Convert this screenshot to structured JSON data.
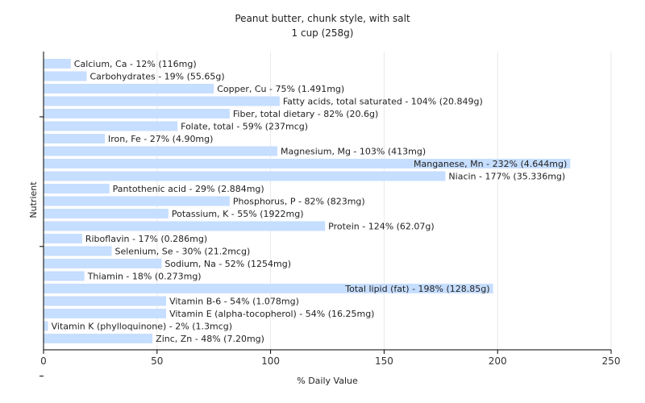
{
  "chart_data": {
    "type": "bar",
    "orientation": "horizontal",
    "title": "Peanut butter, chunk style, with salt",
    "subtitle": "1 cup (258g)",
    "xlabel": "% Daily Value",
    "ylabel": "Nutrient",
    "xlim": [
      0,
      250
    ],
    "xticks": [
      0,
      50,
      100,
      150,
      200,
      250
    ],
    "grid": true,
    "legend": "none",
    "bar_color": "#c6deff",
    "categories": [
      "Calcium, Ca",
      "Carbohydrates",
      "Copper, Cu",
      "Fatty acids, total saturated",
      "Fiber, total dietary",
      "Folate, total",
      "Iron, Fe",
      "Magnesium, Mg",
      "Manganese, Mn",
      "Niacin",
      "Pantothenic acid",
      "Phosphorus, P",
      "Potassium, K",
      "Protein",
      "Riboflavin",
      "Selenium, Se",
      "Sodium, Na",
      "Thiamin",
      "Total lipid (fat)",
      "Vitamin B-6",
      "Vitamin E (alpha-tocopherol)",
      "Vitamin K (phylloquinone)",
      "Zinc, Zn"
    ],
    "values": [
      12,
      19,
      75,
      104,
      82,
      59,
      27,
      103,
      232,
      177,
      29,
      82,
      55,
      124,
      17,
      30,
      52,
      18,
      198,
      54,
      54,
      2,
      48
    ],
    "labels": [
      "Calcium, Ca - 12% (116mg)",
      "Carbohydrates - 19% (55.65g)",
      "Copper, Cu - 75% (1.491mg)",
      "Fatty acids, total saturated - 104% (20.849g)",
      "Fiber, total dietary - 82% (20.6g)",
      "Folate, total - 59% (237mcg)",
      "Iron, Fe - 27% (4.90mg)",
      "Magnesium, Mg - 103% (413mg)",
      "Manganese, Mn - 232% (4.644mg)",
      "Niacin - 177% (35.336mg)",
      "Pantothenic acid - 29% (2.884mg)",
      "Phosphorus, P - 82% (823mg)",
      "Potassium, K - 55% (1922mg)",
      "Protein - 124% (62.07g)",
      "Riboflavin - 17% (0.286mg)",
      "Selenium, Se - 30% (21.2mcg)",
      "Sodium, Na - 52% (1254mg)",
      "Thiamin - 18% (0.273mg)",
      "Total lipid (fat) - 198% (128.85g)",
      "Vitamin B-6 - 54% (1.078mg)",
      "Vitamin E (alpha-tocopherol) - 54% (16.25mg)",
      "Vitamin K (phylloquinone) - 2% (1.3mcg)",
      "Zinc, Zn - 48% (7.20mg)"
    ]
  }
}
